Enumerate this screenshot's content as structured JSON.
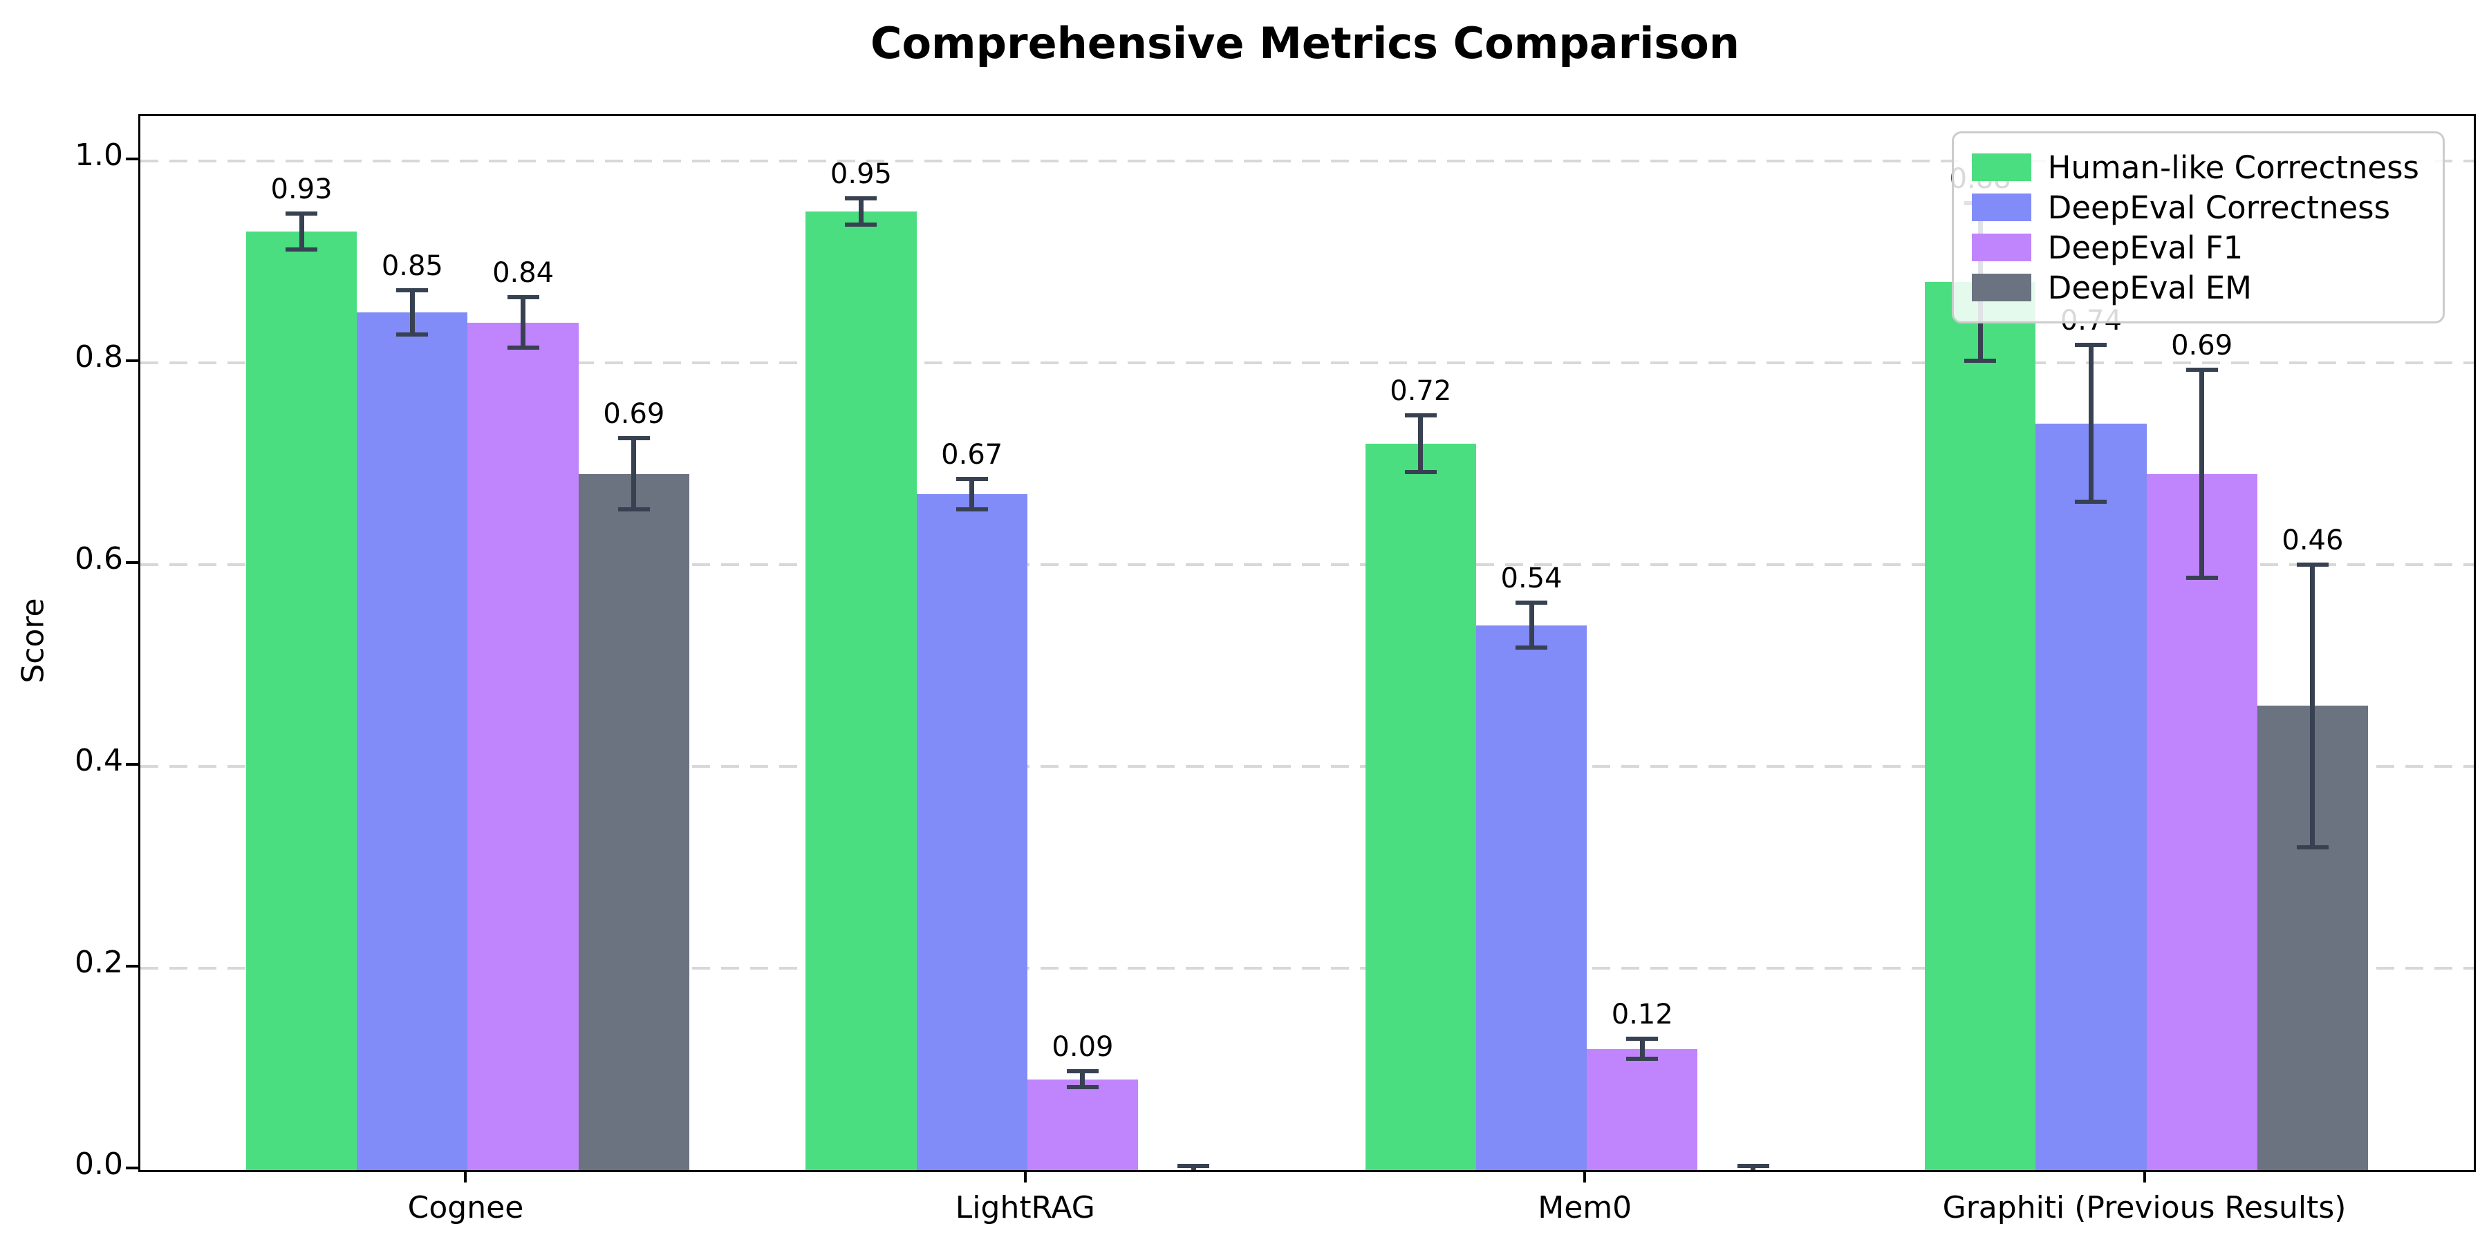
{
  "title": "Comprehensive Metrics Comparison",
  "ylabel": "Score",
  "chart_data": {
    "type": "bar",
    "title": "Comprehensive Metrics Comparison",
    "xlabel": "",
    "ylabel": "Score",
    "categories": [
      "Cognee",
      "LightRAG",
      "Mem0",
      "Graphiti (Previous Results)"
    ],
    "yticks": [
      0.0,
      0.2,
      0.4,
      0.6,
      0.8,
      1.0
    ],
    "ylim": [
      0,
      1.0445
    ],
    "grid": "horizontal-dashed",
    "gridline_color": "#d8d8d8",
    "error_bar_color": "#374151",
    "legend_position": "upper-right",
    "series": [
      {
        "name": "Human-like Correctness",
        "color": "#4ade80",
        "values": [
          0.93,
          0.95,
          0.72,
          0.88
        ],
        "errors": [
          0.018,
          0.013,
          0.028,
          0.078
        ],
        "labels": [
          "0.93",
          "0.95",
          "0.72",
          "0.88"
        ]
      },
      {
        "name": "DeepEval Correctness",
        "color": "#818cf8",
        "values": [
          0.85,
          0.67,
          0.54,
          0.74
        ],
        "errors": [
          0.022,
          0.015,
          0.022,
          0.078
        ],
        "labels": [
          "0.85",
          "0.67",
          "0.54",
          "0.74"
        ]
      },
      {
        "name": "DeepEval F1",
        "color": "#c084fc",
        "values": [
          0.84,
          0.09,
          0.12,
          0.69
        ],
        "errors": [
          0.025,
          0.008,
          0.01,
          0.103
        ],
        "labels": [
          "0.84",
          "0.09",
          "0.12",
          "0.69"
        ]
      },
      {
        "name": "DeepEval EM",
        "color": "#6b7280",
        "values": [
          0.69,
          0.0,
          0.0,
          0.46
        ],
        "errors": [
          0.035,
          0.004,
          0.004,
          0.14
        ],
        "labels": [
          "0.69",
          "",
          "",
          "0.46"
        ]
      }
    ]
  }
}
